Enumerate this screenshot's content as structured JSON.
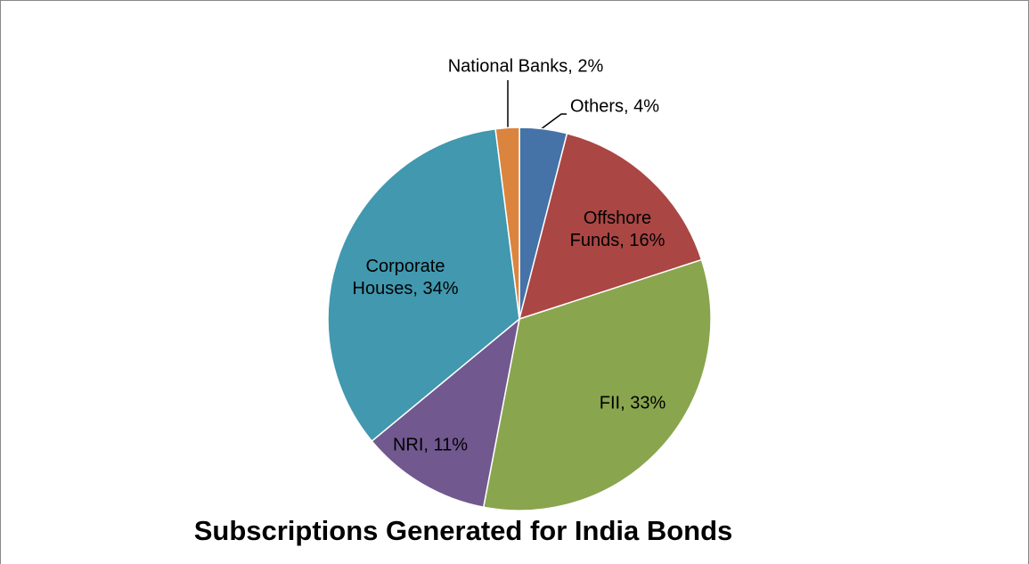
{
  "chart_data": {
    "type": "pie",
    "title": "Subscriptions Generated for India Bonds",
    "labels": [
      "Others, 4%",
      "Offshore Funds, 16%",
      "FII, 33%",
      "NRI, 11%",
      "Corporate Houses, 34%",
      "National Banks, 2%"
    ],
    "values": [
      4,
      16,
      33,
      11,
      34,
      2
    ],
    "colors": [
      "#4572a7",
      "#aa4643",
      "#89a54e",
      "#71588f",
      "#4198af",
      "#db843d"
    ]
  }
}
